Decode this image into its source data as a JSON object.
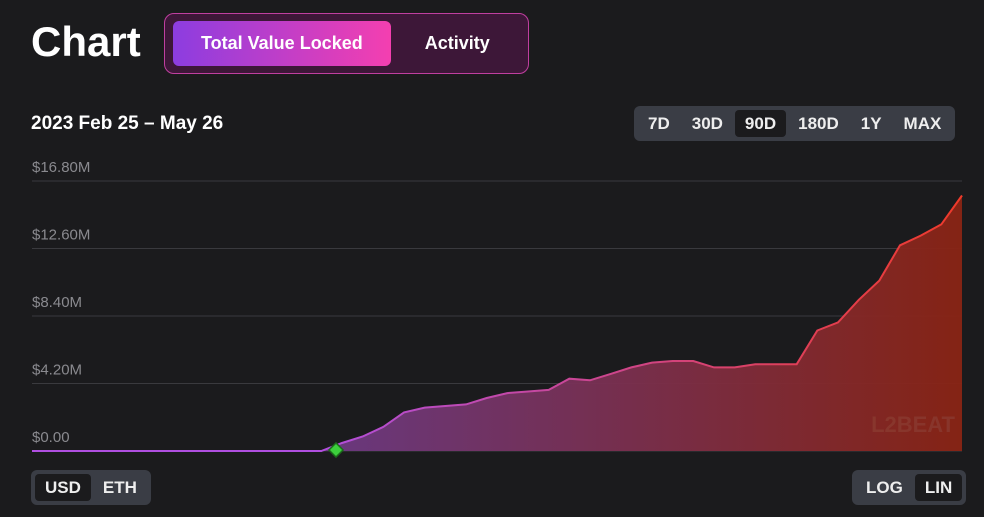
{
  "header": {
    "title": "Chart",
    "tabs": [
      "Total Value Locked",
      "Activity"
    ],
    "selected_tab": 0
  },
  "date_range": "2023 Feb 25 – May 26",
  "ranges": {
    "options": [
      "7D",
      "30D",
      "90D",
      "180D",
      "1Y",
      "MAX"
    ],
    "selected": 2
  },
  "currency": {
    "options": [
      "USD",
      "ETH"
    ],
    "selected": 0
  },
  "scale": {
    "options": [
      "LOG",
      "LIN"
    ],
    "selected": 1
  },
  "watermark": "L2BEAT",
  "chart_data": {
    "type": "area",
    "values": [
      0,
      0,
      0,
      0,
      0,
      0,
      0,
      0,
      0,
      0,
      0,
      0,
      0,
      0,
      0,
      0.5,
      0.9,
      1.5,
      2.4,
      2.7,
      2.8,
      2.9,
      3.3,
      3.6,
      3.7,
      3.8,
      4.5,
      4.4,
      4.8,
      5.2,
      5.5,
      5.6,
      5.6,
      5.2,
      5.2,
      5.4,
      5.4,
      5.4,
      7.5,
      8.0,
      9.4,
      10.6,
      12.8,
      13.4,
      14.1,
      15.9
    ],
    "ylim": [
      0,
      16.8
    ],
    "yticks": [
      {
        "value": 0,
        "label": "$0.00"
      },
      {
        "value": 4.2,
        "label": "$4.20M"
      },
      {
        "value": 8.4,
        "label": "$8.40M"
      },
      {
        "value": 12.6,
        "label": "$12.60M"
      },
      {
        "value": 16.8,
        "label": "$16.80M"
      }
    ],
    "grid": true
  }
}
